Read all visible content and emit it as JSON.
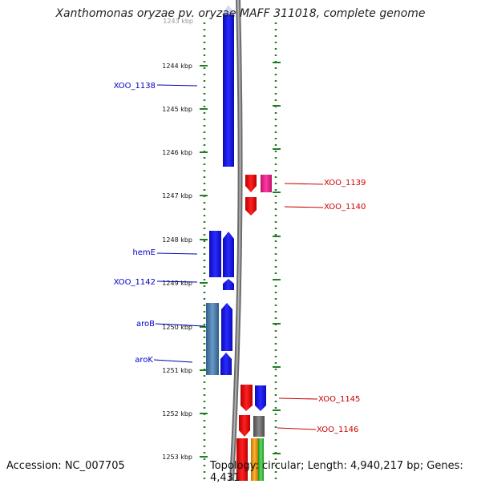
{
  "title": "Xanthomonas oryzae pv. oryzae MAFF 311018, complete genome",
  "footer": {
    "accession": "Accession: NC_007705",
    "topology": "Topology: circular; Length: 4,940,217 bp; Genes: 4,431"
  },
  "ruler": {
    "partial_top_label": "1243 kbp",
    "ticks": [
      "1244 kbp",
      "1245 kbp",
      "1246 kbp",
      "1247 kbp",
      "1248 kbp",
      "1249 kbp",
      "1250 kbp",
      "1251 kbp",
      "1252 kbp",
      "1253 kbp"
    ]
  },
  "genes_left": [
    {
      "name": "XOO_1138",
      "color": "#1a1aff"
    },
    {
      "name": "hemE",
      "color": "#1a1aff"
    },
    {
      "name": "XOO_1142",
      "color": "#1a1aff"
    },
    {
      "name": "aroB",
      "color": "#1a1aff"
    },
    {
      "name": "aroK",
      "color": "#1a1aff"
    }
  ],
  "genes_right": [
    {
      "name": "XOO_1139",
      "color": "#ff0000"
    },
    {
      "name": "XOO_1140",
      "color": "#ff0000"
    },
    {
      "name": "XOO_1145",
      "color": "#ff0000"
    },
    {
      "name": "XOO_1146",
      "color": "#ff0000"
    }
  ],
  "colors": {
    "minus_strand": "#1010ee",
    "plus_strand": "#ee1010",
    "magenta": "#ee1f8f",
    "steelblue": "#4a79a8",
    "gray": "#6a6a6a",
    "orange": "#f0a020",
    "green": "#40c040",
    "guide": "#208020",
    "backbone": "#7a7a7a"
  }
}
